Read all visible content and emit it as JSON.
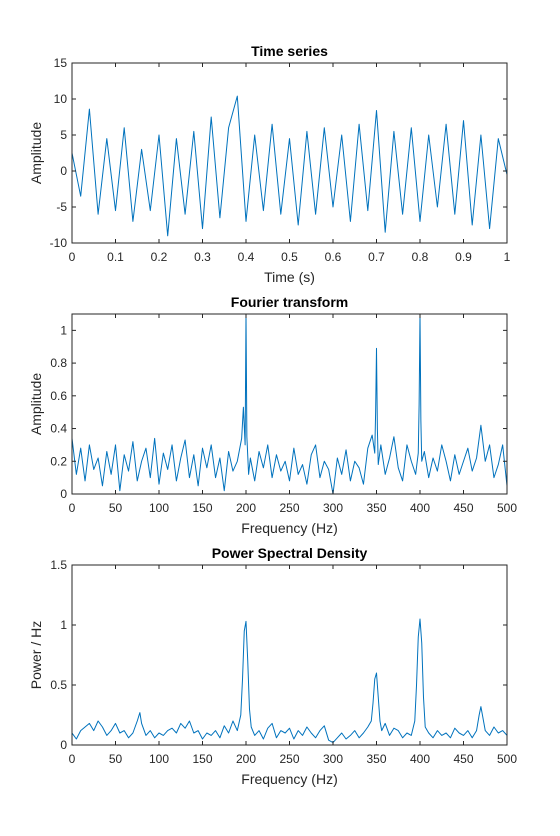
{
  "chart_data": [
    {
      "type": "line",
      "title": "Time series",
      "xlabel": "Time (s)",
      "ylabel": "Amplitude",
      "xlim": [
        0,
        1
      ],
      "ylim": [
        -10,
        15
      ],
      "xticks": [
        0,
        0.1,
        0.2,
        0.3,
        0.4,
        0.5,
        0.6,
        0.7,
        0.8,
        0.9,
        1
      ],
      "xtick_labels": [
        "0",
        "0.1",
        "0.2",
        "0.3",
        "0.4",
        "0.5",
        "0.6",
        "0.7",
        "0.8",
        "0.9",
        "1"
      ],
      "yticks": [
        -10,
        -5,
        0,
        5,
        10,
        15
      ],
      "ytick_labels": [
        "-10",
        "-5",
        "0",
        "5",
        "10",
        "15"
      ],
      "grid": false,
      "color": "#0072BD",
      "series": [
        {
          "x": [
            0,
            0.02,
            0.04,
            0.06,
            0.08,
            0.1,
            0.12,
            0.14,
            0.16,
            0.18,
            0.2,
            0.22,
            0.24,
            0.26,
            0.28,
            0.3,
            0.32,
            0.34,
            0.36,
            0.38,
            0.4,
            0.42,
            0.44,
            0.46,
            0.48,
            0.5,
            0.52,
            0.54,
            0.56,
            0.58,
            0.6,
            0.62,
            0.64,
            0.66,
            0.68,
            0.7,
            0.72,
            0.74,
            0.76,
            0.78,
            0.8,
            0.82,
            0.84,
            0.86,
            0.88,
            0.9,
            0.92,
            0.94,
            0.96,
            0.98,
            1
          ],
          "y": [
            2.5,
            -3.5,
            8.6,
            -6.0,
            4.5,
            -5.5,
            6.0,
            -7.0,
            3.0,
            -5.5,
            5.0,
            -9.0,
            4.5,
            -6.0,
            5.5,
            -8.0,
            7.5,
            -6.5,
            6.0,
            10.4,
            -7.0,
            5.0,
            -5.5,
            6.5,
            -6.0,
            4.5,
            -7.5,
            5.5,
            -6.0,
            6.0,
            -5.0,
            5.0,
            -7.0,
            6.5,
            -5.5,
            8.4,
            -8.5,
            5.5,
            -6.0,
            6.0,
            -7.0,
            5.0,
            -5.0,
            6.5,
            -6.0,
            7.0,
            -7.5,
            5.0,
            -8.0,
            4.5,
            -0.5
          ]
        }
      ]
    },
    {
      "type": "line",
      "title": "Fourier transform",
      "xlabel": "Frequency (Hz)",
      "ylabel": "Amplitude",
      "xlim": [
        0,
        500
      ],
      "ylim": [
        0,
        1.1
      ],
      "xticks": [
        0,
        50,
        100,
        150,
        200,
        250,
        300,
        350,
        400,
        450,
        500
      ],
      "xtick_labels": [
        "0",
        "50",
        "100",
        "150",
        "200",
        "250",
        "300",
        "350",
        "400",
        "450",
        "500"
      ],
      "yticks": [
        0,
        0.2,
        0.4,
        0.6,
        0.8,
        1
      ],
      "ytick_labels": [
        "0",
        "0.2",
        "0.4",
        "0.6",
        "0.8",
        "1"
      ],
      "grid": false,
      "color": "#0072BD",
      "series": [
        {
          "x": [
            0,
            5,
            10,
            15,
            20,
            25,
            30,
            35,
            40,
            45,
            50,
            55,
            60,
            65,
            70,
            75,
            80,
            85,
            90,
            95,
            100,
            105,
            110,
            115,
            120,
            125,
            130,
            135,
            140,
            145,
            150,
            155,
            160,
            165,
            170,
            175,
            180,
            185,
            190,
            195,
            197,
            199,
            200,
            201,
            203,
            205,
            210,
            215,
            220,
            225,
            230,
            235,
            240,
            245,
            250,
            255,
            260,
            265,
            270,
            275,
            280,
            285,
            290,
            295,
            300,
            305,
            310,
            315,
            320,
            325,
            330,
            335,
            340,
            345,
            348,
            349,
            350,
            351,
            352,
            355,
            360,
            365,
            370,
            375,
            380,
            385,
            390,
            395,
            398,
            399,
            400,
            401,
            402,
            405,
            410,
            415,
            420,
            425,
            430,
            435,
            440,
            445,
            450,
            455,
            460,
            465,
            470,
            475,
            480,
            485,
            490,
            495,
            500
          ],
          "y": [
            0.34,
            0.12,
            0.28,
            0.08,
            0.3,
            0.15,
            0.22,
            0.05,
            0.26,
            0.12,
            0.3,
            0.02,
            0.24,
            0.14,
            0.32,
            0.08,
            0.2,
            0.28,
            0.1,
            0.34,
            0.06,
            0.25,
            0.15,
            0.3,
            0.08,
            0.22,
            0.33,
            0.1,
            0.24,
            0.05,
            0.28,
            0.16,
            0.3,
            0.1,
            0.22,
            0.02,
            0.26,
            0.14,
            0.2,
            0.34,
            0.53,
            0.3,
            1.1,
            0.35,
            0.12,
            0.22,
            0.08,
            0.26,
            0.16,
            0.3,
            0.1,
            0.24,
            0.14,
            0.2,
            0.08,
            0.28,
            0.12,
            0.18,
            0.06,
            0.24,
            0.3,
            0.1,
            0.2,
            0.15,
            0.0,
            0.22,
            0.12,
            0.27,
            0.08,
            0.2,
            0.16,
            0.06,
            0.28,
            0.36,
            0.25,
            0.5,
            0.89,
            0.4,
            0.18,
            0.3,
            0.12,
            0.22,
            0.35,
            0.16,
            0.08,
            0.3,
            0.2,
            0.12,
            0.25,
            0.55,
            1.1,
            0.45,
            0.2,
            0.26,
            0.1,
            0.22,
            0.14,
            0.3,
            0.2,
            0.08,
            0.24,
            0.12,
            0.2,
            0.28,
            0.14,
            0.22,
            0.42,
            0.2,
            0.3,
            0.1,
            0.18,
            0.3,
            0.05
          ]
        }
      ]
    },
    {
      "type": "line",
      "title": "Power Spectral Density",
      "xlabel": "Frequency (Hz)",
      "ylabel": "Power / Hz",
      "xlim": [
        0,
        500
      ],
      "ylim": [
        0,
        1.5
      ],
      "xticks": [
        0,
        50,
        100,
        150,
        200,
        250,
        300,
        350,
        400,
        450,
        500
      ],
      "xtick_labels": [
        "0",
        "50",
        "100",
        "150",
        "200",
        "250",
        "300",
        "350",
        "400",
        "450",
        "500"
      ],
      "yticks": [
        0,
        0.5,
        1,
        1.5
      ],
      "ytick_labels": [
        "0",
        "0.5",
        "1",
        "1.5"
      ],
      "grid": false,
      "color": "#0072BD",
      "series": [
        {
          "x": [
            0,
            5,
            10,
            15,
            20,
            25,
            30,
            35,
            40,
            45,
            50,
            55,
            60,
            65,
            70,
            75,
            78,
            80,
            85,
            90,
            95,
            100,
            105,
            110,
            115,
            120,
            125,
            130,
            135,
            140,
            145,
            150,
            155,
            160,
            165,
            170,
            175,
            180,
            185,
            190,
            194,
            196,
            198,
            200,
            202,
            204,
            206,
            210,
            215,
            220,
            225,
            230,
            235,
            240,
            245,
            250,
            255,
            260,
            265,
            270,
            275,
            280,
            285,
            290,
            295,
            300,
            305,
            310,
            315,
            320,
            325,
            330,
            335,
            340,
            344,
            346,
            348,
            350,
            352,
            354,
            356,
            360,
            365,
            370,
            375,
            380,
            385,
            390,
            394,
            396,
            398,
            400,
            402,
            404,
            406,
            410,
            415,
            420,
            425,
            430,
            435,
            440,
            445,
            450,
            455,
            460,
            465,
            468,
            470,
            472,
            475,
            480,
            485,
            490,
            495,
            500
          ],
          "y": [
            0.1,
            0.05,
            0.12,
            0.15,
            0.18,
            0.12,
            0.2,
            0.15,
            0.08,
            0.12,
            0.18,
            0.1,
            0.12,
            0.06,
            0.1,
            0.2,
            0.27,
            0.18,
            0.08,
            0.12,
            0.06,
            0.1,
            0.08,
            0.12,
            0.14,
            0.1,
            0.18,
            0.14,
            0.2,
            0.1,
            0.12,
            0.05,
            0.1,
            0.08,
            0.12,
            0.06,
            0.16,
            0.1,
            0.2,
            0.12,
            0.25,
            0.55,
            0.95,
            1.03,
            0.7,
            0.3,
            0.15,
            0.08,
            0.12,
            0.05,
            0.14,
            0.18,
            0.06,
            0.12,
            0.1,
            0.14,
            0.05,
            0.12,
            0.08,
            0.15,
            0.1,
            0.06,
            0.12,
            0.16,
            0.04,
            0.02,
            0.06,
            0.1,
            0.05,
            0.08,
            0.12,
            0.06,
            0.1,
            0.15,
            0.2,
            0.35,
            0.55,
            0.6,
            0.4,
            0.2,
            0.12,
            0.18,
            0.08,
            0.14,
            0.12,
            0.06,
            0.1,
            0.08,
            0.2,
            0.5,
            0.9,
            1.05,
            0.85,
            0.4,
            0.15,
            0.1,
            0.06,
            0.12,
            0.08,
            0.1,
            0.06,
            0.14,
            0.1,
            0.08,
            0.12,
            0.06,
            0.12,
            0.25,
            0.32,
            0.24,
            0.12,
            0.08,
            0.15,
            0.1,
            0.12,
            0.08
          ]
        }
      ]
    }
  ]
}
